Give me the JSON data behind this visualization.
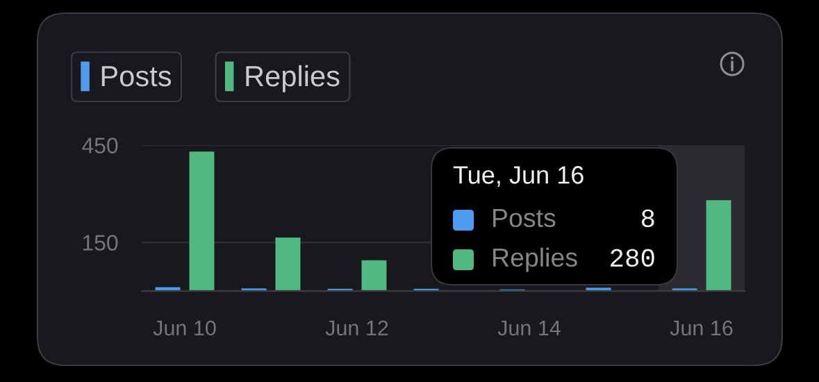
{
  "chart_data": {
    "type": "bar",
    "categories": [
      "Jun 10",
      null,
      "Jun 12",
      null,
      "Jun 14",
      null,
      "Jun 16"
    ],
    "series": [
      {
        "name": "Posts",
        "color": "#4f9bef",
        "values": [
          12,
          8,
          7,
          7,
          5,
          10,
          8
        ]
      },
      {
        "name": "Replies",
        "color": "#52b882",
        "values": [
          430,
          165,
          95,
          null,
          null,
          null,
          280
        ]
      }
    ],
    "ylim": [
      0,
      450
    ],
    "yticks": [
      150,
      450
    ],
    "grid": "y",
    "legend": "top left",
    "bands": [
      {
        "axis": "x",
        "from": "Jun 16",
        "to": "Jun 16",
        "color": "#2a2b2f"
      }
    ],
    "annotations": [
      "Tue, Jun 16",
      "Posts",
      "8",
      "Replies",
      "280"
    ]
  }
}
